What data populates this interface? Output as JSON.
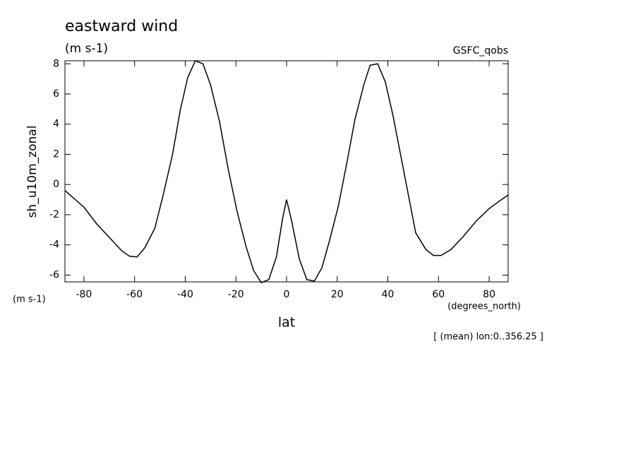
{
  "chart_data": {
    "type": "line",
    "title": "eastward wind",
    "subtitle": "(m s-1)",
    "source": "GSFC_qobs",
    "y_label": "sh_u10m_zonal",
    "y_units": "(m s-1)",
    "x_units": "(degrees_north)",
    "x_label": "lat",
    "annotation": "[ (mean) lon:0..356.25 ]",
    "xlim": [
      -87.5,
      87.5
    ],
    "ylim": [
      -6.45,
      8.2
    ],
    "xticks": [
      -80,
      -60,
      -40,
      -20,
      0,
      20,
      40,
      60,
      80
    ],
    "yticks": [
      -6,
      -4,
      -2,
      0,
      2,
      4,
      6,
      8
    ],
    "series": [
      {
        "color": "#000000",
        "x": [
          -87.5,
          -80,
          -75,
          -70,
          -65,
          -62,
          -59,
          -56,
          -52,
          -49,
          -45,
          -42,
          -39,
          -36,
          -33,
          -30,
          -26.5,
          -23,
          -19.5,
          -16,
          -13,
          -10,
          -7,
          -4,
          -1.5,
          0,
          2,
          5,
          8,
          11,
          14,
          17,
          20.5,
          24,
          27,
          30.5,
          33,
          36,
          39,
          42,
          45,
          48,
          51,
          55,
          58,
          61,
          65,
          70,
          75,
          80,
          84,
          87.5
        ],
        "values": [
          -0.4,
          -1.5,
          -2.6,
          -3.5,
          -4.4,
          -4.75,
          -4.8,
          -4.2,
          -2.9,
          -0.9,
          2.0,
          4.9,
          7.1,
          8.2,
          8.0,
          6.6,
          4.2,
          1.0,
          -1.8,
          -4.1,
          -5.7,
          -6.5,
          -6.3,
          -4.8,
          -2.2,
          -1.0,
          -2.4,
          -4.9,
          -6.3,
          -6.4,
          -5.5,
          -3.7,
          -1.4,
          1.6,
          4.3,
          6.6,
          7.9,
          8.0,
          6.8,
          4.6,
          2.0,
          -0.6,
          -3.2,
          -4.3,
          -4.7,
          -4.7,
          -4.3,
          -3.4,
          -2.4,
          -1.6,
          -1.1,
          -0.7
        ]
      }
    ]
  }
}
